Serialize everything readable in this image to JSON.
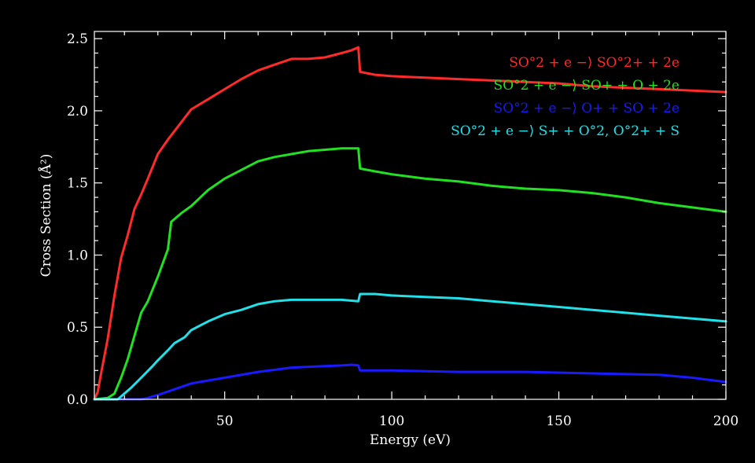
{
  "chart_data": {
    "type": "line",
    "xlabel": "Energy (eV)",
    "ylabel": "Cross Section (Å²)",
    "xlim": [
      11,
      200
    ],
    "ylim": [
      0,
      2.55
    ],
    "x_ticks": [
      50,
      100,
      150,
      200
    ],
    "x_tick_labels": [
      "50",
      "100",
      "150",
      "200"
    ],
    "y_ticks": [
      0.0,
      0.5,
      1.0,
      1.5,
      2.0,
      2.5
    ],
    "y_tick_labels": [
      "0.0",
      "0.5",
      "1.0",
      "1.5",
      "2.0",
      "2.5"
    ],
    "grid": false,
    "legend_position": "top-right",
    "background": "#000000",
    "axis_color": "#ffffff",
    "series": [
      {
        "name": "SO°2 + e −⟩ SO°2+ + 2e",
        "color": "#ff2a2a",
        "x": [
          11,
          12,
          13,
          15,
          17,
          19,
          21,
          23,
          25,
          27,
          30,
          33,
          35,
          38,
          40,
          45,
          50,
          55,
          60,
          65,
          70,
          75,
          80,
          85,
          88,
          90,
          90.5,
          95,
          100,
          110,
          120,
          130,
          140,
          150,
          160,
          170,
          180,
          190,
          200
        ],
        "y": [
          0,
          0.05,
          0.18,
          0.42,
          0.72,
          0.98,
          1.14,
          1.32,
          1.42,
          1.53,
          1.7,
          1.8,
          1.86,
          1.95,
          2.01,
          2.08,
          2.15,
          2.22,
          2.28,
          2.32,
          2.36,
          2.36,
          2.37,
          2.4,
          2.42,
          2.44,
          2.27,
          2.25,
          2.24,
          2.23,
          2.22,
          2.21,
          2.2,
          2.19,
          2.17,
          2.16,
          2.15,
          2.14,
          2.13
        ]
      },
      {
        "name": "SO°2 + e −⟩ SO+ + O + 2e",
        "color": "#22e022",
        "x": [
          11,
          15,
          17,
          19,
          21,
          23,
          25,
          27,
          30,
          33,
          34,
          37,
          40,
          45,
          50,
          55,
          60,
          65,
          70,
          75,
          80,
          85,
          90,
          90.5,
          95,
          100,
          110,
          120,
          130,
          140,
          150,
          160,
          170,
          180,
          190,
          200
        ],
        "y": [
          0,
          0.01,
          0.04,
          0.15,
          0.28,
          0.44,
          0.6,
          0.68,
          0.85,
          1.04,
          1.23,
          1.29,
          1.34,
          1.45,
          1.53,
          1.59,
          1.65,
          1.68,
          1.7,
          1.72,
          1.73,
          1.74,
          1.74,
          1.6,
          1.58,
          1.56,
          1.53,
          1.51,
          1.48,
          1.46,
          1.45,
          1.43,
          1.4,
          1.36,
          1.33,
          1.3
        ]
      },
      {
        "name": "SO°2 + e −⟩ O+ + SO + 2e",
        "color": "#1a1aff",
        "x": [
          11,
          25,
          27,
          30,
          35,
          40,
          45,
          50,
          60,
          70,
          80,
          85,
          88,
          90,
          90.5,
          100,
          120,
          140,
          160,
          180,
          190,
          200
        ],
        "y": [
          0,
          0.0,
          0.01,
          0.03,
          0.07,
          0.11,
          0.13,
          0.15,
          0.19,
          0.22,
          0.23,
          0.235,
          0.24,
          0.235,
          0.2,
          0.2,
          0.19,
          0.19,
          0.18,
          0.17,
          0.15,
          0.12
        ]
      },
      {
        "name": "SO°2 + e −⟩ S+ + O°2, O°2+ + S",
        "color": "#22e0e8",
        "x": [
          11,
          18,
          20,
          22,
          25,
          28,
          30,
          33,
          35,
          38,
          40,
          45,
          50,
          55,
          60,
          65,
          70,
          75,
          80,
          85,
          90,
          90.5,
          95,
          100,
          110,
          120,
          130,
          140,
          150,
          160,
          170,
          180,
          190,
          200
        ],
        "y": [
          0,
          0.0,
          0.04,
          0.08,
          0.15,
          0.22,
          0.27,
          0.34,
          0.39,
          0.43,
          0.48,
          0.54,
          0.59,
          0.62,
          0.66,
          0.68,
          0.69,
          0.69,
          0.69,
          0.69,
          0.68,
          0.73,
          0.73,
          0.72,
          0.71,
          0.7,
          0.68,
          0.66,
          0.64,
          0.62,
          0.6,
          0.58,
          0.56,
          0.54
        ]
      }
    ]
  }
}
